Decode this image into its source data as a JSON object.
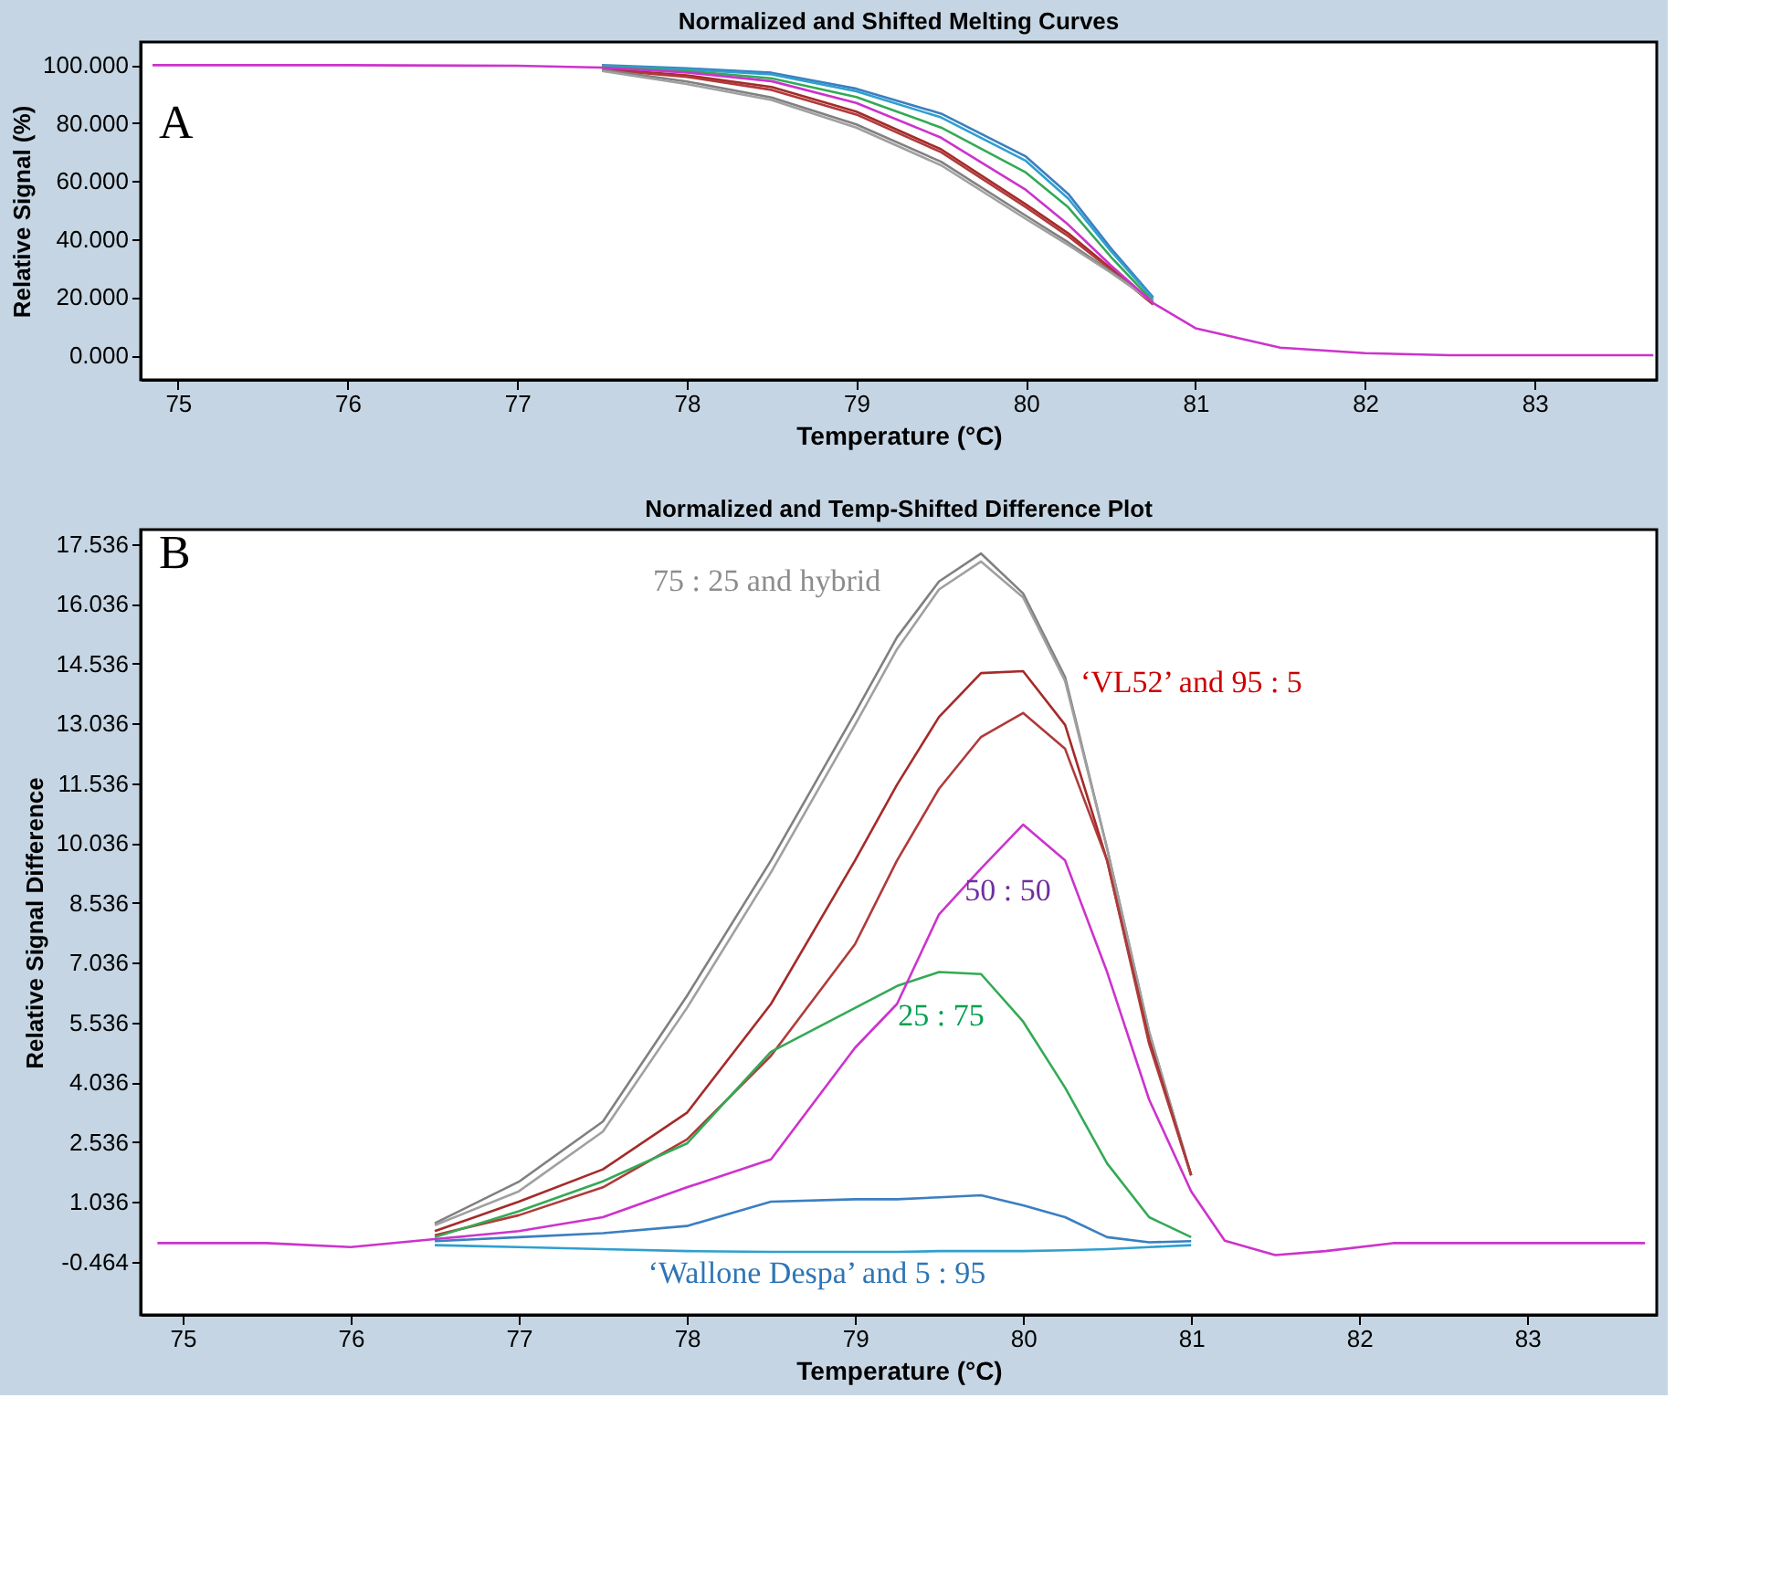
{
  "chart_data": [
    {
      "type": "line",
      "title": "Normalized and Shifted Melting Curves",
      "xlabel": "Temperature (°C)",
      "ylabel": "Relative Signal (%)",
      "line_style": "solid",
      "x": [
        74.85,
        76,
        77,
        77.5,
        78,
        78.5,
        79,
        79.5,
        80,
        80.25,
        80.5,
        80.75,
        81,
        81.5,
        82,
        82.5,
        83.7
      ],
      "series": [
        {
          "color": "#3a7fc0",
          "values": [
            null,
            null,
            null,
            100,
            98.9,
            97.4,
            91.9,
            83.3,
            68.5,
            55.6,
            37,
            20,
            null,
            null,
            null,
            null,
            null
          ]
        },
        {
          "color": "#2f9fd0",
          "values": [
            null,
            null,
            null,
            99.8,
            98.5,
            96.8,
            91,
            82,
            67,
            54,
            36,
            19.5,
            null,
            null,
            null,
            null,
            null
          ]
        },
        {
          "color": "#33aa55",
          "values": [
            null,
            null,
            null,
            99.3,
            98,
            95.5,
            89,
            78.5,
            63,
            51,
            34,
            18.5,
            null,
            null,
            null,
            null,
            null
          ]
        },
        {
          "color": "#a52a2a",
          "values": [
            null,
            null,
            null,
            98.8,
            96.5,
            92.5,
            84,
            71,
            52,
            42,
            30,
            18,
            null,
            null,
            null,
            null,
            null
          ]
        },
        {
          "color": "#b03a3a",
          "values": [
            null,
            null,
            null,
            98.5,
            96,
            91.5,
            83,
            70,
            51,
            41,
            29.5,
            17.5,
            null,
            null,
            null,
            null,
            null
          ]
        },
        {
          "color": "#808080",
          "values": [
            null,
            null,
            null,
            98.5,
            94.4,
            88.9,
            79.6,
            66.7,
            48.1,
            38.9,
            28.9,
            18.8,
            null,
            null,
            null,
            null,
            null
          ]
        },
        {
          "color": "#a0a0a0",
          "values": [
            null,
            null,
            null,
            98,
            93.5,
            88,
            78.5,
            65.5,
            47,
            38,
            28.5,
            18.3,
            null,
            null,
            null,
            null,
            null
          ]
        },
        {
          "color": "#cc33cc",
          "values": [
            100,
            100,
            99.8,
            99.2,
            97.5,
            94.5,
            87,
            75,
            57,
            45,
            31,
            18,
            9.3,
            2.6,
            0.7,
            0,
            0
          ]
        }
      ],
      "xlim": [
        74.78,
        83.72
      ],
      "ylim": [
        -8.5,
        108
      ],
      "xticks": [
        75,
        76,
        77,
        78,
        79,
        80,
        81,
        82,
        83
      ],
      "yticks": [
        {
          "value": 0,
          "label": "0.000"
        },
        {
          "value": 20,
          "label": "20.000"
        },
        {
          "value": 40,
          "label": "40.000"
        },
        {
          "value": 60,
          "label": "60.000"
        },
        {
          "value": 80,
          "label": "80.000"
        },
        {
          "value": 100,
          "label": "100.000"
        }
      ],
      "annotations": [
        "A"
      ]
    },
    {
      "type": "line",
      "title": "Normalized and Temp-Shifted Difference Plot",
      "xlabel": "Temperature (°C)",
      "ylabel": "Relative Signal Difference",
      "line_style": "solid",
      "x": [
        74.85,
        75.5,
        76.0,
        76.5,
        77.0,
        77.5,
        78.0,
        78.5,
        79.0,
        79.25,
        79.5,
        79.75,
        80.0,
        80.25,
        80.5,
        80.75,
        81.0,
        81.2,
        81.5,
        81.8,
        82.2,
        82.6,
        83.0,
        83.7
      ],
      "series": [
        {
          "color": "#808080",
          "values": [
            null,
            null,
            null,
            0.5,
            1.54,
            3.05,
            6.2,
            9.6,
            13.3,
            15.2,
            16.6,
            17.3,
            16.3,
            14.2,
            9.9,
            5.3,
            1.7,
            null,
            null,
            null,
            null,
            null,
            null,
            null
          ]
        },
        {
          "color": "#a0a0a0",
          "values": [
            null,
            null,
            null,
            0.45,
            1.3,
            2.8,
            5.9,
            9.3,
            13.0,
            14.9,
            16.4,
            17.1,
            16.2,
            14.1,
            9.9,
            5.3,
            1.7,
            null,
            null,
            null,
            null,
            null,
            null,
            null
          ]
        },
        {
          "color": "#a52a2a",
          "values": [
            null,
            null,
            null,
            0.3,
            1.04,
            1.85,
            3.27,
            6.0,
            9.6,
            11.5,
            13.2,
            14.3,
            14.35,
            13.0,
            9.6,
            5.1,
            1.7,
            null,
            null,
            null,
            null,
            null,
            null,
            null
          ]
        },
        {
          "color": "#b03a3a",
          "values": [
            null,
            null,
            null,
            0.2,
            0.7,
            1.4,
            2.6,
            4.7,
            7.5,
            9.6,
            11.4,
            12.7,
            13.3,
            12.4,
            9.6,
            5.0,
            1.7,
            null,
            null,
            null,
            null,
            null,
            null,
            null
          ]
        },
        {
          "color": "#33aa55",
          "values": [
            null,
            null,
            null,
            0.15,
            0.8,
            1.55,
            2.5,
            4.8,
            5.9,
            6.45,
            6.8,
            6.75,
            5.56,
            3.9,
            2.0,
            0.65,
            0.15,
            null,
            null,
            null,
            null,
            null,
            null,
            null
          ]
        },
        {
          "color": "#3a7fc0",
          "values": [
            null,
            null,
            null,
            0.05,
            0.15,
            0.25,
            0.43,
            1.04,
            1.1,
            1.1,
            1.15,
            1.2,
            0.95,
            0.65,
            0.15,
            0.02,
            0.05,
            null,
            null,
            null,
            null,
            null,
            null,
            null
          ]
        },
        {
          "color": "#2f9fd0",
          "values": [
            null,
            null,
            null,
            -0.05,
            -0.1,
            -0.15,
            -0.2,
            -0.22,
            -0.22,
            -0.22,
            -0.2,
            -0.2,
            -0.2,
            -0.18,
            -0.15,
            -0.1,
            -0.05,
            null,
            null,
            null,
            null,
            null,
            null,
            null
          ]
        },
        {
          "color": "#cc33cc",
          "values": [
            0,
            0,
            -0.1,
            0.1,
            0.3,
            0.65,
            1.4,
            2.1,
            4.9,
            6.0,
            8.25,
            9.4,
            10.5,
            9.6,
            6.8,
            3.6,
            1.3,
            0.06,
            -0.3,
            -0.2,
            0,
            0,
            0,
            0
          ]
        }
      ],
      "xlim": [
        74.75,
        83.77
      ],
      "ylim": [
        -1.8,
        17.9
      ],
      "xticks": [
        75,
        76,
        77,
        78,
        79,
        80,
        81,
        82,
        83
      ],
      "yticks": [
        -0.464,
        1.036,
        2.536,
        4.036,
        5.536,
        7.036,
        8.536,
        10.036,
        11.536,
        13.036,
        14.536,
        16.036,
        17.536
      ],
      "annotations": [
        "B",
        "75 : 25 and hybrid",
        "‘VL52’ and 95 : 5",
        "50 : 50",
        "25 : 75",
        "‘Wallone Despa’ and 5 : 95"
      ]
    }
  ]
}
